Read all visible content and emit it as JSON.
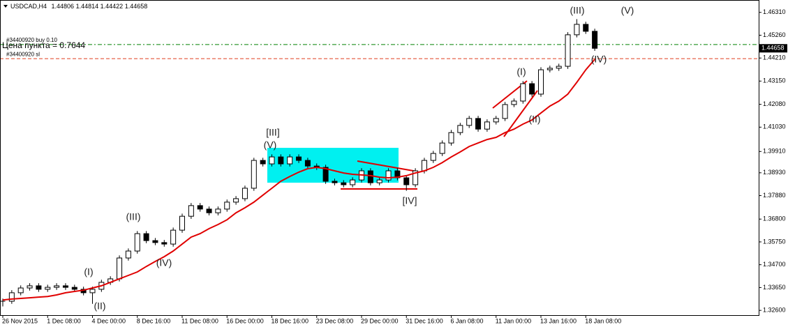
{
  "chart_data": {
    "type": "candlestick",
    "header": {
      "symbol": "USDCAD,H4",
      "open": 1.44806,
      "high": 1.44814,
      "low": 1.44422,
      "close": 1.44658
    },
    "categories": [
      "26 Nov 2015",
      null,
      null,
      null,
      null,
      "1 Dec 08:00",
      null,
      null,
      null,
      null,
      "4 Dec 00:00",
      null,
      null,
      null,
      null,
      "8 Dec 16:00",
      null,
      null,
      null,
      null,
      "11 Dec 08:00",
      null,
      null,
      null,
      null,
      "16 Dec 00:00",
      null,
      null,
      null,
      null,
      "18 Dec 16:00",
      null,
      null,
      null,
      null,
      "23 Dec 08:00",
      null,
      null,
      null,
      null,
      "29 Dec 00:00",
      null,
      null,
      null,
      null,
      "31 Dec 16:00",
      null,
      null,
      null,
      null,
      "6 Jan 08:00",
      null,
      null,
      null,
      null,
      "11 Jan 00:00",
      null,
      null,
      null,
      null,
      "13 Jan 16:00",
      null,
      null,
      null,
      null,
      "18 Jan 08:00",
      null
    ],
    "close": [
      1.3302,
      1.3341,
      1.3363,
      1.3373,
      1.3357,
      1.3366,
      1.3373,
      1.3366,
      1.3357,
      1.3341,
      1.3357,
      1.3389,
      1.3405,
      1.3501,
      1.3533,
      1.3613,
      1.3581,
      1.3572,
      1.3565,
      1.3629,
      1.3693,
      1.3742,
      1.3726,
      1.3709,
      1.3726,
      1.3758,
      1.3774,
      1.3822,
      1.395,
      1.3934,
      1.3966,
      1.3934,
      1.3966,
      1.395,
      1.3924,
      1.3918,
      1.3854,
      1.3847,
      1.3838,
      1.386,
      1.3902,
      1.3847,
      1.386,
      1.3902,
      1.387,
      1.3838,
      1.3902,
      1.395,
      1.3982,
      1.403,
      1.4078,
      1.4111,
      1.4143,
      1.4094,
      1.4127,
      1.4143,
      1.4207,
      1.4223,
      1.4303,
      1.4255,
      1.4367,
      1.4374,
      1.4383,
      1.4528,
      1.4576,
      1.4544,
      1.44658
    ],
    "high": [
      1.3314,
      1.3353,
      1.3375,
      1.3385,
      1.3385,
      1.3378,
      1.3385,
      1.3385,
      1.3378,
      1.3369,
      1.3369,
      1.3401,
      1.3417,
      1.3513,
      1.3545,
      1.3625,
      1.3625,
      1.3593,
      1.3584,
      1.3641,
      1.3705,
      1.3754,
      1.3754,
      1.3738,
      1.3738,
      1.377,
      1.3786,
      1.3834,
      1.3962,
      1.3962,
      1.3978,
      1.3978,
      1.3978,
      1.3978,
      1.3962,
      1.3936,
      1.393,
      1.3866,
      1.3859,
      1.3872,
      1.3914,
      1.3914,
      1.3872,
      1.3914,
      1.3914,
      1.3882,
      1.3914,
      1.3962,
      1.3994,
      1.4042,
      1.409,
      1.4123,
      1.4155,
      1.4155,
      1.4139,
      1.4155,
      1.4219,
      1.4235,
      1.4315,
      1.4315,
      1.4379,
      1.4386,
      1.4395,
      1.454,
      1.46,
      1.4588,
      1.4556
    ],
    "low": [
      1.3278,
      1.329,
      1.3329,
      1.3351,
      1.3345,
      1.3345,
      1.3354,
      1.3354,
      1.3345,
      1.3329,
      1.329,
      1.3345,
      1.3377,
      1.3393,
      1.3489,
      1.3521,
      1.3569,
      1.356,
      1.3553,
      1.3553,
      1.3617,
      1.3681,
      1.3714,
      1.3697,
      1.3697,
      1.3714,
      1.3746,
      1.3762,
      1.381,
      1.3922,
      1.3922,
      1.3922,
      1.3922,
      1.3938,
      1.3912,
      1.3906,
      1.3842,
      1.3835,
      1.3826,
      1.3826,
      1.3848,
      1.3835,
      1.3835,
      1.3848,
      1.3858,
      1.381,
      1.3826,
      1.389,
      1.3938,
      1.397,
      1.4018,
      1.4066,
      1.4099,
      1.4082,
      1.4082,
      1.4115,
      1.4131,
      1.4195,
      1.4211,
      1.4243,
      1.4243,
      1.4355,
      1.4362,
      1.4371,
      1.4516,
      1.4532,
      1.4454
    ],
    "up_color": "#ffffff",
    "down_color": "#000000",
    "ma": {
      "color": "#e00000",
      "values": [
        1.3308,
        1.3312,
        1.3315,
        1.3318,
        1.3321,
        1.3324,
        1.3331,
        1.3341,
        1.3347,
        1.3353,
        1.3363,
        1.3373,
        1.3389,
        1.3405,
        1.3421,
        1.3437,
        1.3462,
        1.3485,
        1.3507,
        1.3533,
        1.3565,
        1.3597,
        1.3613,
        1.3636,
        1.3655,
        1.3677,
        1.3709,
        1.3732,
        1.3758,
        1.379,
        1.3822,
        1.3854,
        1.3876,
        1.3896,
        1.3912,
        1.3918,
        1.3912,
        1.3902,
        1.3892,
        1.3886,
        1.3883,
        1.388,
        1.3873,
        1.387,
        1.3873,
        1.388,
        1.3892,
        1.3902,
        1.3918,
        1.394,
        1.3966,
        1.3989,
        1.4014,
        1.403,
        1.4046,
        1.4056,
        1.4078,
        1.4094,
        1.4117,
        1.4136,
        1.4168,
        1.42,
        1.4223,
        1.4255,
        1.4309,
        1.4367,
        1.4415
      ]
    },
    "ylim": [
      1.3238,
      1.4688
    ],
    "yticks": [
      {
        "value": 1.4631,
        "label": "1.46310"
      },
      {
        "value": 1.4526,
        "label": "1.45260"
      },
      {
        "value": 1.4421,
        "label": "1.44210"
      },
      {
        "value": 1.4315,
        "label": "1.43150"
      },
      {
        "value": 1.4208,
        "label": "1.42080"
      },
      {
        "value": 1.4103,
        "label": "1.41030"
      },
      {
        "value": 1.3991,
        "label": "1.39910"
      },
      {
        "value": 1.3893,
        "label": "1.38930"
      },
      {
        "value": 1.3788,
        "label": "1.37880"
      },
      {
        "value": 1.368,
        "label": "1.36800"
      },
      {
        "value": 1.3575,
        "label": "1.35750"
      },
      {
        "value": 1.347,
        "label": "1.34700"
      },
      {
        "value": 1.3365,
        "label": "1.33650"
      },
      {
        "value": 1.326,
        "label": "1.32600"
      }
    ],
    "current_price": 1.44658,
    "orders": [
      {
        "label": "#34400920 buy 0.10",
        "price": 1.4483,
        "color": "#008000"
      },
      {
        "label": "#34400920 sl",
        "price": 1.4418,
        "color": "#e03c1e"
      }
    ],
    "info": "Цена пункта = 0.7644",
    "annotations": [
      "(I)",
      "(II)",
      "(III)",
      "(IV)",
      "(V)",
      "[III]",
      "[IV]",
      "(I)",
      "(II)",
      "(III)",
      "(IV)",
      "(V)"
    ]
  }
}
